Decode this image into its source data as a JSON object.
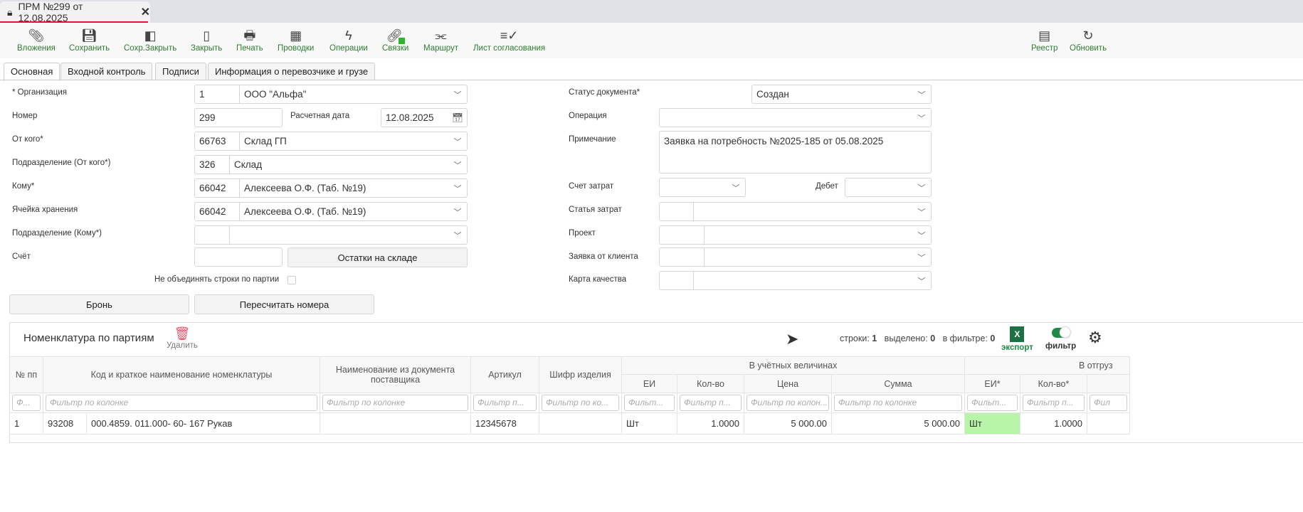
{
  "window_tab": {
    "title": "ПРМ №299 от 12.08.2025",
    "lock_icon": "lock-icon",
    "close_icon": "close-icon"
  },
  "toolbar": {
    "items": [
      {
        "label": "Вложения",
        "icon": "paperclip-icon"
      },
      {
        "label": "Сохранить",
        "icon": "save-icon"
      },
      {
        "label": "Сохр.Закрыть",
        "icon": "save-close-icon"
      },
      {
        "label": "Закрыть",
        "icon": "door-icon"
      },
      {
        "label": "Печать",
        "icon": "printer-icon"
      },
      {
        "label": "Проводки",
        "icon": "calculator-icon"
      },
      {
        "label": "Операции",
        "icon": "lightning-icon"
      },
      {
        "label": "Связки",
        "icon": "link-icon"
      },
      {
        "label": "Маршрут",
        "icon": "route-icon"
      },
      {
        "label": "Лист согласования",
        "icon": "checklist-icon"
      },
      {
        "label": "Реестр",
        "icon": "register-icon"
      },
      {
        "label": "Обновить",
        "icon": "refresh-icon"
      }
    ],
    "label_color": "#2e7d32"
  },
  "form_tabs": [
    "Основная",
    "Входной контроль",
    "Подписи",
    "Информация о перевозчике и грузе"
  ],
  "form": {
    "org_label": "* Организация",
    "org_code": "1",
    "org_value": "ООО \"Альфа\"",
    "number_label": "Номер",
    "number_value": "299",
    "calc_date_label": "Расчетная дата",
    "calc_date_value": "12.08.2025",
    "from_label": "От кого*",
    "from_code": "66763",
    "from_value": "Склад ГП",
    "from_dept_label": "Подразделение (От кого*)",
    "from_dept_code": "326",
    "from_dept_value": "Склад",
    "to_label": "Кому*",
    "to_code": "66042",
    "to_value": "Алексеева О.Ф. (Таб. №19)",
    "cell_label": "Ячейка хранения",
    "cell_code": "66042",
    "cell_value": "Алексеева О.Ф. (Таб. №19)",
    "to_dept_label": "Подразделение (Кому*)",
    "account_label": "Счёт",
    "stock_button": "Остатки на складе",
    "no_merge_label": "Не объединять строки по партии",
    "reserve_button": "Бронь",
    "renumber_button": "Пересчитать номера",
    "status_label": "Статус документа*",
    "status_value": "Создан",
    "operation_label": "Операция",
    "note_label": "Примечание",
    "note_value": "Заявка на потребность №2025-185 от 05.08.2025",
    "cost_account_label": "Счет затрат",
    "debit_label": "Дебет",
    "cost_item_label": "Статья затрат",
    "project_label": "Проект",
    "client_request_label": "Заявка от клиента",
    "quality_card_label": "Карта качества"
  },
  "grid": {
    "title": "Номенклатура по партиям",
    "delete_label": "Удалить",
    "rows_label": "строки:",
    "rows_count": "1",
    "selected_label": "выделено:",
    "selected_count": "0",
    "filtered_label": "в фильтре:",
    "filtered_count": "0",
    "export_label": "экспорт",
    "filter_label": "фильтр",
    "filter_on": true,
    "group_accounting": "В учётных величинах",
    "group_shipping": "В отгруз",
    "columns": [
      "№ пп",
      "Код и краткое наименование номенклатуры",
      "Наименование из документа поставщика",
      "Артикул",
      "Шифр изделия",
      "ЕИ",
      "Кол-во",
      "Цена",
      "Сумма",
      "ЕИ*",
      "Кол-во*"
    ],
    "filter_placeholders": [
      "Ф...",
      "Фильтр по колонке",
      "Фильтр по колонке",
      "Фильтр п...",
      "Фильтр по ко...",
      "Фильт...",
      "Фильтр п...",
      "Фильтр по колон...",
      "Фильтр по колонке",
      "Фильт...",
      "Фильтр п...",
      "Фил"
    ],
    "rows": [
      {
        "num": "1",
        "code": "93208",
        "name": "000.4859. 011.000- 60- 167 Рукав",
        "supplier_name": "",
        "article": "12345678",
        "cipher": "",
        "unit": "Шт",
        "qty": "1.0000",
        "price": "5 000.00",
        "sum": "5 000.00",
        "unit2": "Шт",
        "qty2": "1.0000"
      }
    ],
    "highlight_color": "#b9f5a8"
  }
}
